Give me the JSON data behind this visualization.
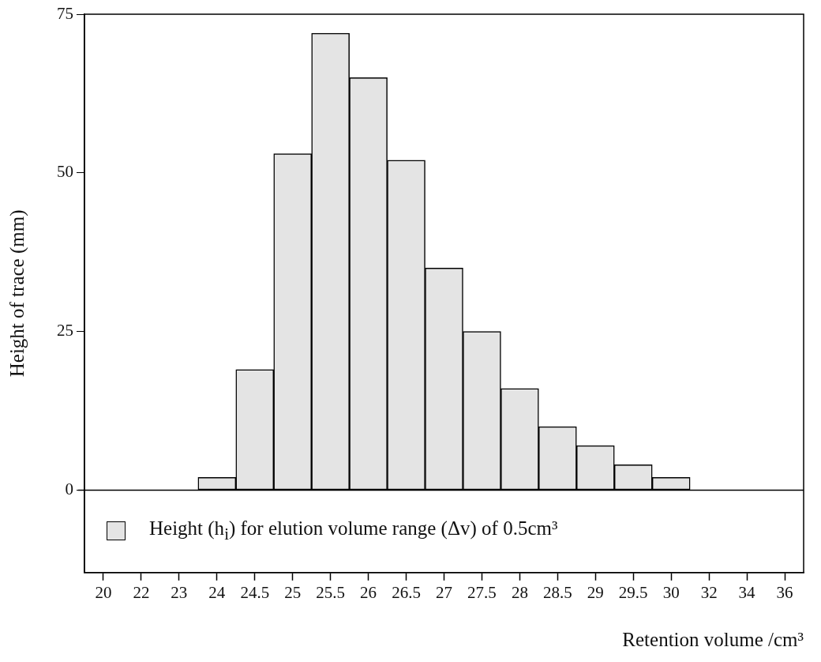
{
  "chart_data": {
    "type": "bar",
    "xlabel": "Retention volume /cm³",
    "ylabel": "Height of trace (mm)",
    "categories": [
      "20",
      "22",
      "23",
      "24",
      "24.5",
      "25",
      "25.5",
      "26",
      "26.5",
      "27",
      "27.5",
      "28",
      "28.5",
      "29",
      "29.5",
      "30",
      "32",
      "34",
      "36"
    ],
    "series": [
      {
        "name": "Height (h$_{i}$) for elution volume range (Δv) of 0.5cm³",
        "color": "#e4e4e4",
        "values": [
          null,
          null,
          null,
          2,
          19,
          53,
          72,
          65,
          52,
          35,
          25,
          16,
          10,
          7,
          4,
          2,
          null,
          null,
          null
        ]
      }
    ],
    "ylim": [
      -13,
      75
    ],
    "yticks": [
      0,
      25,
      50,
      75
    ],
    "ref_lines": [
      {
        "axis": "y",
        "value": 0,
        "color": "#000000"
      }
    ],
    "grid": false,
    "legend": "bottom"
  }
}
